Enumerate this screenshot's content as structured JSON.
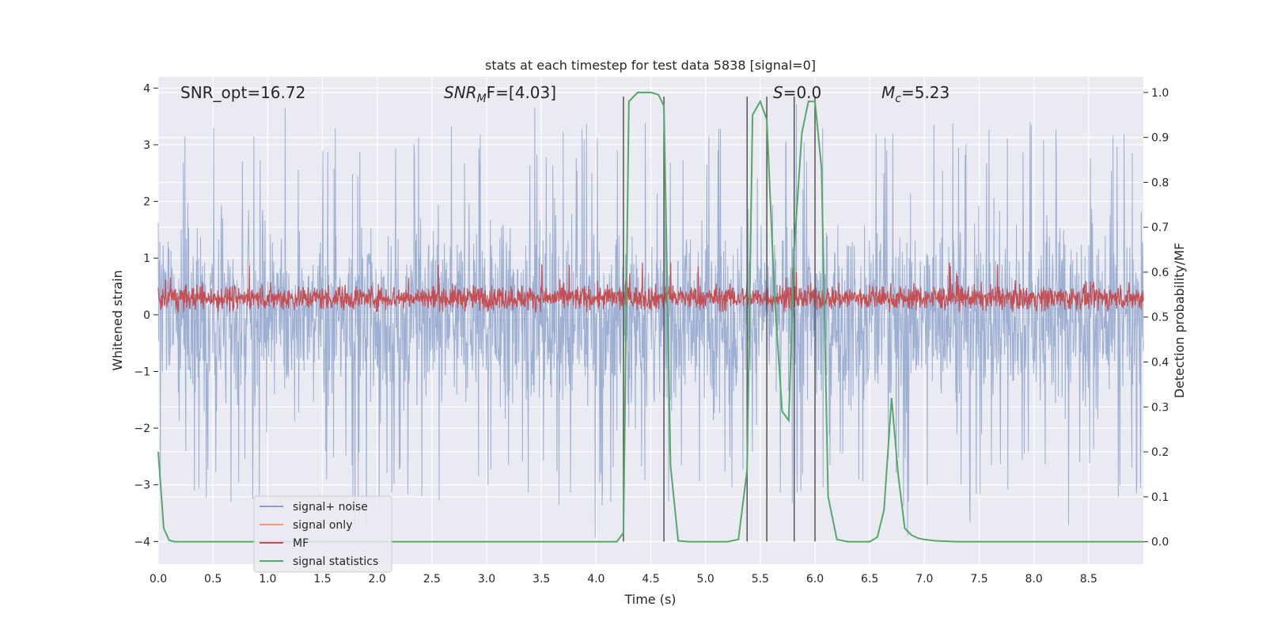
{
  "chart_data": {
    "type": "line",
    "title": "stats at each timestep for test data 5838 [signal=0]",
    "xlabel": "Time (s)",
    "ylabel": "Whitened strain",
    "y2label": "Detection probability/MF",
    "xlim": [
      0,
      9.0
    ],
    "ylim": [
      -4.4,
      4.2
    ],
    "y2lim": [
      -0.05,
      1.035
    ],
    "x_ticks": [
      0.0,
      0.5,
      1.0,
      1.5,
      2.0,
      2.5,
      3.0,
      3.5,
      4.0,
      4.5,
      5.0,
      5.5,
      6.0,
      6.5,
      7.0,
      7.5,
      8.0,
      8.5
    ],
    "x_tick_labels": [
      "0.0",
      "0.5",
      "1.0",
      "1.5",
      "2.0",
      "2.5",
      "3.0",
      "3.5",
      "4.0",
      "4.5",
      "5.0",
      "5.5",
      "6.0",
      "6.5",
      "7.0",
      "7.5",
      "8.0",
      "8.5"
    ],
    "y_ticks": [
      4,
      3,
      2,
      1,
      0,
      -1,
      -2,
      -3,
      -4
    ],
    "y_tick_labels": [
      "4",
      "3",
      "2",
      "1",
      "0",
      "−1",
      "−2",
      "−3",
      "−4"
    ],
    "y2_ticks": [
      1.0,
      0.9,
      0.8,
      0.7,
      0.6,
      0.5,
      0.4,
      0.3,
      0.2,
      0.1,
      0.0
    ],
    "y2_tick_labels": [
      "1.0",
      "0.9",
      "0.8",
      "0.7",
      "0.6",
      "0.5",
      "0.4",
      "0.3",
      "0.2",
      "0.1",
      "0.0"
    ],
    "annotations": {
      "snr_opt": "SNR_opt=16.72",
      "snr_mf_main": "SNR",
      "snr_mf_sub": "M",
      "snr_mf_rest": "F=[4.03]",
      "s_main": "S",
      "s_rest": "=0.0",
      "mc_main": "M",
      "mc_sub": "c",
      "mc_rest": "=5.23"
    },
    "legend": {
      "location": "lower left",
      "entries": [
        {
          "label": "signal+ noise",
          "color": "#8da0cb"
        },
        {
          "label": "signal only",
          "color": "#e8a07c"
        },
        {
          "label": "MF",
          "color": "#c44e52"
        },
        {
          "label": "signal statistics",
          "color": "#55a868"
        }
      ]
    },
    "noise": {
      "name": "signal+ noise",
      "color": "#8fa4cc",
      "band_sigma": 1.45,
      "typical_max": 3.4,
      "typical_min": -3.2,
      "peak_max": 3.85,
      "peak_min": -3.95
    },
    "mf": {
      "name": "MF",
      "color": "#c44e52",
      "center": 0.3,
      "low": 0.05,
      "high": 0.65,
      "peak_high": 1.0
    },
    "vertical_lines": {
      "color": "#555555",
      "x": [
        4.25,
        4.62,
        5.38,
        5.56,
        5.81,
        6.0
      ],
      "y_top": 3.85,
      "y_bottom": -4.0
    },
    "series": [
      {
        "name": "signal statistics",
        "color": "#55a868",
        "x": [
          0.0,
          0.05,
          0.1,
          0.15,
          0.2,
          0.3,
          0.5,
          1.0,
          2.0,
          3.0,
          4.0,
          4.19,
          4.25,
          4.3,
          4.38,
          4.5,
          4.57,
          4.62,
          4.68,
          4.75,
          4.85,
          5.0,
          5.2,
          5.3,
          5.38,
          5.43,
          5.5,
          5.56,
          5.63,
          5.7,
          5.76,
          5.81,
          5.88,
          5.94,
          6.0,
          6.06,
          6.12,
          6.2,
          6.3,
          6.5,
          6.57,
          6.63,
          6.7,
          6.76,
          6.82,
          6.88,
          6.94,
          7.0,
          7.1,
          7.3,
          7.6,
          8.0,
          9.0
        ],
        "values": [
          0.2,
          0.03,
          0.003,
          0.0,
          0.0,
          0.0,
          0.0,
          0.0,
          0.0,
          0.0,
          0.0,
          0.0,
          0.02,
          0.98,
          1.0,
          1.0,
          0.995,
          0.97,
          0.17,
          0.002,
          0.0,
          0.0,
          0.0,
          0.005,
          0.16,
          0.95,
          0.98,
          0.94,
          0.55,
          0.29,
          0.27,
          0.65,
          0.91,
          0.98,
          0.98,
          0.83,
          0.1,
          0.005,
          0.0,
          0.0,
          0.01,
          0.07,
          0.32,
          0.15,
          0.03,
          0.015,
          0.008,
          0.005,
          0.002,
          0.0,
          0.0,
          0.0,
          0.0
        ]
      }
    ]
  }
}
